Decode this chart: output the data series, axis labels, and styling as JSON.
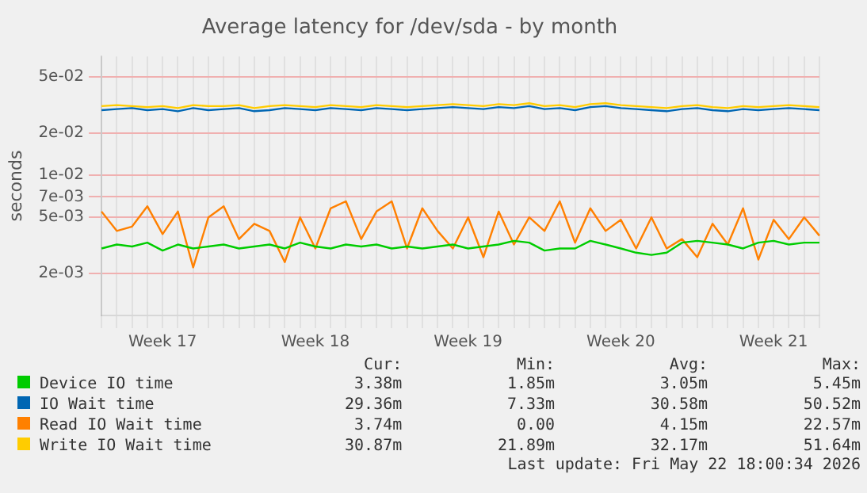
{
  "chart_data": {
    "type": "line",
    "title": "Average latency for /dev/sda - by month",
    "ylabel": "seconds",
    "categories": [
      null,
      null,
      null,
      null,
      "Week 17",
      null,
      null,
      null,
      null,
      null,
      null,
      null,
      null,
      null,
      "Week 18",
      null,
      null,
      null,
      null,
      null,
      null,
      null,
      null,
      null,
      "Week 19",
      null,
      null,
      null,
      null,
      null,
      null,
      null,
      null,
      null,
      "Week 20",
      null,
      null,
      null,
      null,
      null,
      null,
      null,
      null,
      null,
      "Week 21",
      null,
      null,
      null
    ],
    "series": [
      {
        "name": "Device IO time",
        "color": "#00cc00",
        "values": [
          0.003,
          0.0032,
          0.0031,
          0.0033,
          0.0029,
          0.0032,
          0.003,
          0.0031,
          0.0032,
          0.003,
          0.0031,
          0.0032,
          0.003,
          0.0033,
          0.0031,
          0.003,
          0.0032,
          0.0031,
          0.0032,
          0.003,
          0.0031,
          0.003,
          0.0031,
          0.0032,
          0.003,
          0.0031,
          0.0032,
          0.0034,
          0.0033,
          0.0029,
          0.003,
          0.003,
          0.0034,
          0.0032,
          0.003,
          0.0028,
          0.0027,
          0.0028,
          0.0033,
          0.0034,
          0.0033,
          0.0032,
          0.003,
          0.0033,
          0.0034,
          0.0032,
          0.0033,
          0.0033
        ]
      },
      {
        "name": "IO Wait time",
        "color": "#0066b3",
        "values": [
          0.029,
          0.0295,
          0.03,
          0.029,
          0.0295,
          0.0285,
          0.03,
          0.029,
          0.0295,
          0.03,
          0.0285,
          0.029,
          0.03,
          0.0295,
          0.029,
          0.03,
          0.0295,
          0.029,
          0.03,
          0.0295,
          0.029,
          0.0295,
          0.03,
          0.0305,
          0.03,
          0.0295,
          0.0305,
          0.03,
          0.031,
          0.0295,
          0.03,
          0.029,
          0.0305,
          0.031,
          0.03,
          0.0295,
          0.029,
          0.0285,
          0.0295,
          0.03,
          0.029,
          0.0285,
          0.0295,
          0.029,
          0.0295,
          0.03,
          0.0295,
          0.029
        ]
      },
      {
        "name": "Read IO Wait time",
        "color": "#ff8000",
        "values": [
          0.0055,
          0.004,
          0.0043,
          0.006,
          0.0038,
          0.0055,
          0.0022,
          0.005,
          0.006,
          0.0035,
          0.0045,
          0.004,
          0.0024,
          0.005,
          0.003,
          0.0058,
          0.0065,
          0.0035,
          0.0055,
          0.0065,
          0.003,
          0.0058,
          0.004,
          0.003,
          0.005,
          0.0026,
          0.0055,
          0.0032,
          0.005,
          0.004,
          0.0065,
          0.0033,
          0.0058,
          0.004,
          0.0048,
          0.003,
          0.005,
          0.003,
          0.0035,
          0.0026,
          0.0045,
          0.0032,
          0.0058,
          0.0025,
          0.0048,
          0.0035,
          0.005,
          0.0037
        ]
      },
      {
        "name": "Write IO Wait time",
        "color": "#ffcc00",
        "values": [
          0.031,
          0.0315,
          0.031,
          0.0305,
          0.031,
          0.03,
          0.0315,
          0.031,
          0.031,
          0.0315,
          0.03,
          0.031,
          0.0315,
          0.031,
          0.0305,
          0.0315,
          0.031,
          0.0305,
          0.0315,
          0.031,
          0.0305,
          0.031,
          0.0315,
          0.032,
          0.0315,
          0.031,
          0.032,
          0.0315,
          0.0325,
          0.031,
          0.0315,
          0.0305,
          0.032,
          0.0325,
          0.0315,
          0.031,
          0.0305,
          0.03,
          0.031,
          0.0315,
          0.0305,
          0.03,
          0.031,
          0.0305,
          0.031,
          0.0315,
          0.031,
          0.0305
        ]
      }
    ],
    "log": true,
    "ylim": [
      0.001,
      0.07
    ],
    "yticks": [
      {
        "value": 0.002,
        "label": "2e-03"
      },
      {
        "value": 0.005,
        "label": "5e-03"
      },
      {
        "value": 0.007,
        "label": "7e-03"
      },
      {
        "value": 0.01,
        "label": "1e-02"
      },
      {
        "value": 0.02,
        "label": "2e-02"
      },
      {
        "value": 0.05,
        "label": "5e-02"
      }
    ],
    "grid": true,
    "legend": "bottom",
    "marker": "none",
    "line_style": "solid",
    "annotations": [
      "Cur:",
      "Min:",
      "Avg:",
      "Max:",
      "3.38m",
      "1.85m",
      "3.05m",
      "5.45m",
      "29.36m",
      "7.33m",
      "30.58m",
      "50.52m",
      "3.74m",
      "0.00",
      "4.15m",
      "22.57m",
      "30.87m",
      "21.89m",
      "32.17m",
      "51.64m",
      "Last update: Fri May 22 18:00:34 2026"
    ]
  }
}
